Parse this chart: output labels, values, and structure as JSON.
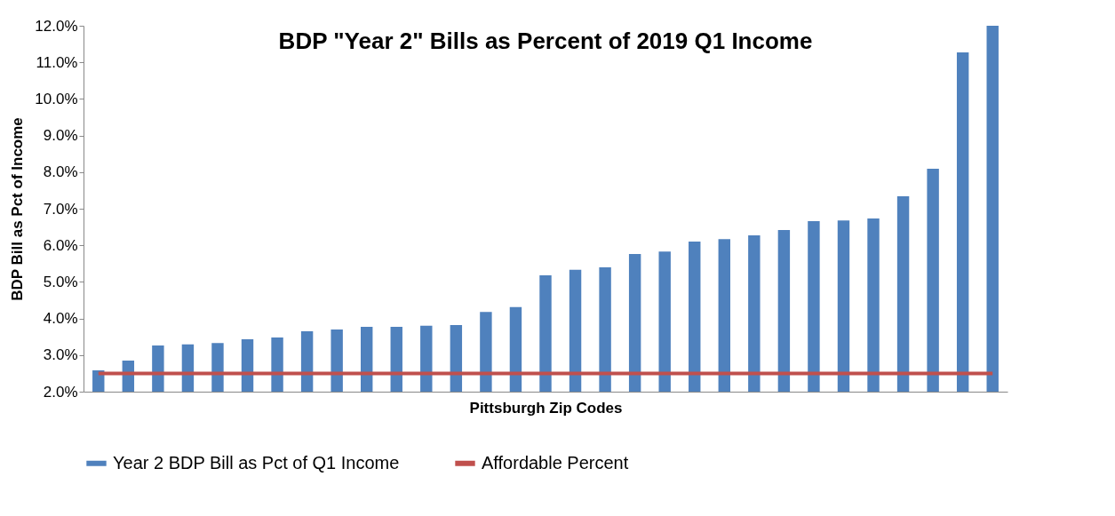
{
  "chart_data": {
    "type": "bar",
    "title": "BDP \"Year 2\" Bills as Percent of 2019 Q1 Income",
    "xlabel": "Pittsburgh Zip Codes",
    "ylabel": "BDP Bill as Pct of Income",
    "categories": [
      null,
      null,
      null,
      null,
      null,
      null,
      null,
      null,
      null,
      null,
      null,
      null,
      null,
      null,
      null,
      null,
      null,
      null,
      null,
      null,
      null,
      null,
      null,
      null,
      null,
      null,
      null,
      null,
      null,
      null,
      null
    ],
    "series": [
      {
        "name": "Year 2 BDP Bill as Pct of Q1 Income",
        "color": "#4f81bd",
        "values": [
          2.58,
          2.85,
          3.26,
          3.29,
          3.33,
          3.43,
          3.48,
          3.65,
          3.7,
          3.77,
          3.77,
          3.8,
          3.82,
          4.18,
          4.31,
          5.18,
          5.33,
          5.4,
          5.76,
          5.83,
          6.1,
          6.17,
          6.27,
          6.42,
          6.66,
          6.68,
          6.73,
          7.34,
          8.09,
          11.27,
          12.0
        ]
      },
      {
        "name": "Affordable Percent",
        "type": "line",
        "color": "#c0504d",
        "values": [
          2.5,
          2.5,
          2.5,
          2.5,
          2.5,
          2.5,
          2.5,
          2.5,
          2.5,
          2.5,
          2.5,
          2.5,
          2.5,
          2.5,
          2.5,
          2.5,
          2.5,
          2.5,
          2.5,
          2.5,
          2.5,
          2.5,
          2.5,
          2.5,
          2.5,
          2.5,
          2.5,
          2.5,
          2.5,
          2.5,
          2.5
        ]
      }
    ],
    "ylim": [
      2,
      12
    ],
    "yticks": [
      {
        "value": 2,
        "label": "2.0%"
      },
      {
        "value": 3,
        "label": "3.0%"
      },
      {
        "value": 4,
        "label": "4.0%"
      },
      {
        "value": 5,
        "label": "5.0%"
      },
      {
        "value": 6,
        "label": "6.0%"
      },
      {
        "value": 7,
        "label": "7.0%"
      },
      {
        "value": 8,
        "label": "8.0%"
      },
      {
        "value": 9,
        "label": "9.0%"
      },
      {
        "value": 10,
        "label": "10.0%"
      },
      {
        "value": 11,
        "label": "11.0%"
      },
      {
        "value": 12,
        "label": "12.0%"
      }
    ],
    "grid": false,
    "legend": "bottom"
  }
}
